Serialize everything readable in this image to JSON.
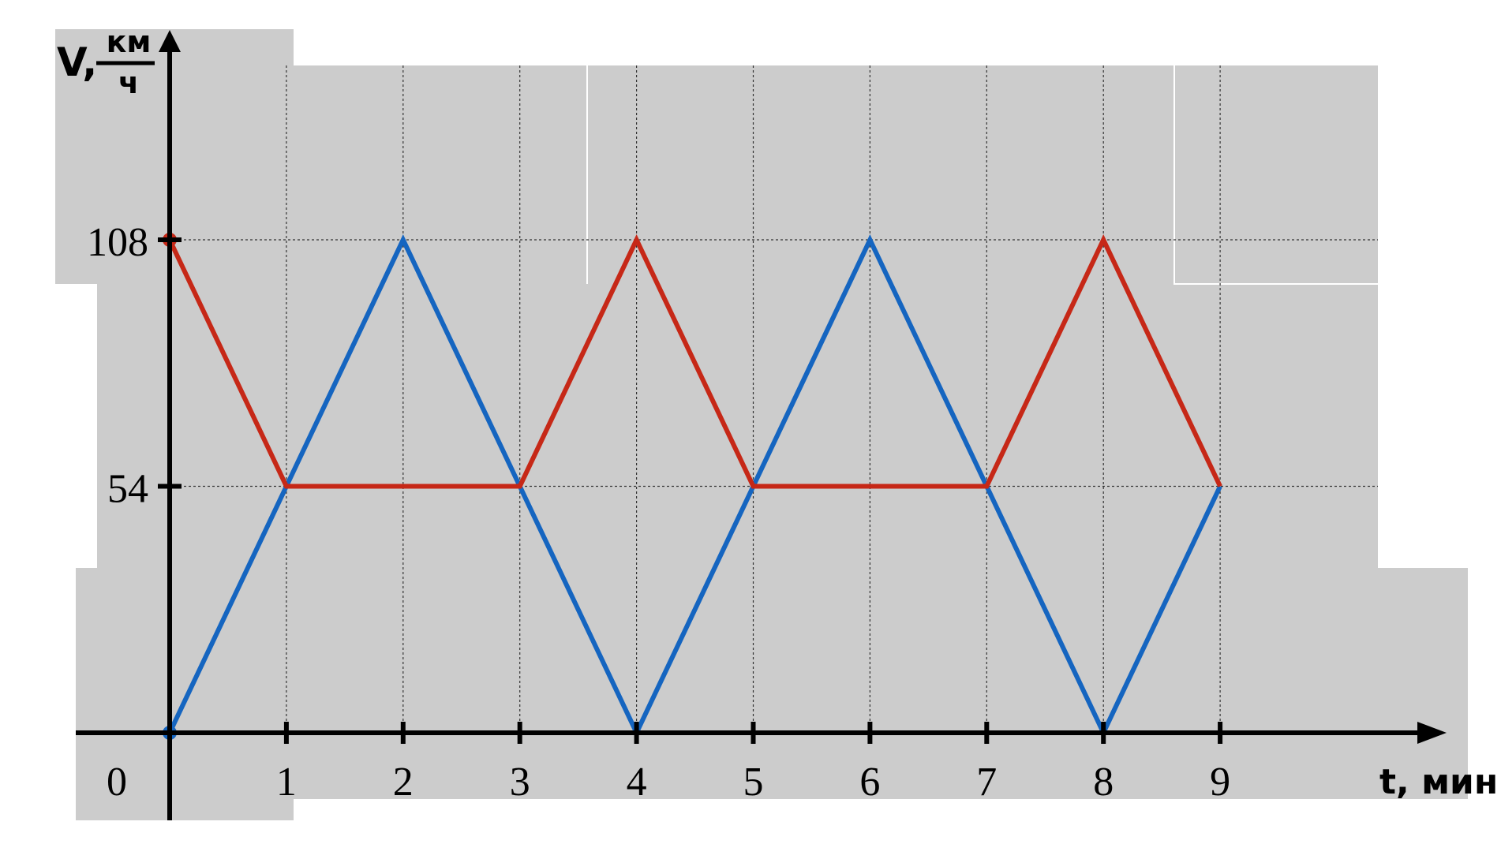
{
  "chart_data": {
    "type": "line",
    "xlabel": "t, мин",
    "ylabel": {
      "symbol": "V,",
      "unit_numerator": "км",
      "unit_denominator": "ч"
    },
    "origin_label": "0",
    "x": [
      0,
      1,
      2,
      3,
      4,
      5,
      6,
      7,
      8,
      9
    ],
    "x_ticks": [
      "1",
      "2",
      "3",
      "4",
      "5",
      "6",
      "7",
      "8",
      "9"
    ],
    "y_ticks": [
      "54",
      "108"
    ],
    "y_tick_values": [
      54,
      108
    ],
    "xlim": [
      0,
      9
    ],
    "ylim": [
      0,
      108
    ],
    "grid": true,
    "series": [
      {
        "color": "#1565c0",
        "values": [
          0,
          54,
          108,
          54,
          0,
          54,
          108,
          54,
          0,
          54
        ]
      },
      {
        "color": "#c62817",
        "values": [
          108,
          54,
          54,
          54,
          108,
          54,
          54,
          54,
          108,
          54
        ]
      }
    ],
    "background_color": "#cccccc"
  }
}
